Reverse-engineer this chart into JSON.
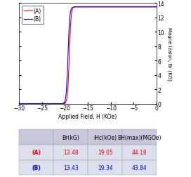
{
  "title": "",
  "xlabel": "Applied Field, H (KOe)",
  "ylabel": "Magne Izalon, Br (KG)",
  "xlim": [
    -30,
    0
  ],
  "ylim": [
    0,
    14
  ],
  "xticks": [
    -30,
    -25,
    -20,
    -15,
    -10,
    -5,
    0
  ],
  "yticks": [
    0,
    2,
    4,
    6,
    8,
    10,
    12,
    14
  ],
  "series": [
    {
      "label": "(A)",
      "color": "#FF0000",
      "Br": 13.48,
      "iHc": 19.05
    },
    {
      "label": "(B)",
      "color": "#0000FF",
      "Br": 13.43,
      "iHc": 19.34
    }
  ],
  "table": {
    "header": [
      "",
      "Br(kG)",
      "iHc(kOe)",
      "BH(max)(MGOe)"
    ],
    "rows": [
      [
        "(A)",
        "13.48",
        "19.05",
        "44.18"
      ],
      [
        "(B)",
        "13.43",
        "19.34",
        "43.84"
      ]
    ],
    "row_colors": [
      "#FF0000",
      "#0000FF"
    ],
    "header_bg": "#C8C8DC",
    "row_bg": "#DCE0EC"
  },
  "legend_loc": "upper left",
  "background_color": "#ffffff",
  "figsize": [
    2.72,
    2.53
  ],
  "dpi": 100
}
